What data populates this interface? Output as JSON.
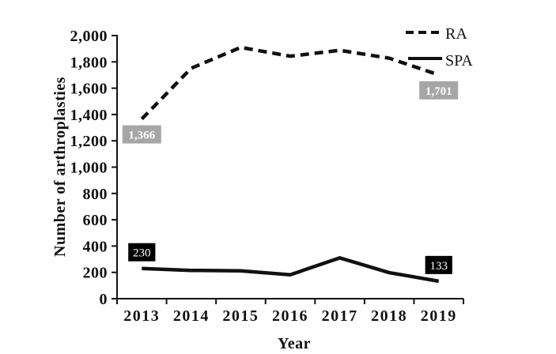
{
  "chart_data": {
    "type": "line",
    "title": "",
    "xlabel": "Year",
    "ylabel": "Number of arthroplasties",
    "categories": [
      "2013",
      "2014",
      "2015",
      "2016",
      "2017",
      "2018",
      "2019"
    ],
    "series": [
      {
        "name": "RA",
        "line_style": "dashed",
        "values": [
          1366,
          1752,
          1910,
          1843,
          1888,
          1828,
          1701
        ]
      },
      {
        "name": "SPA",
        "line_style": "solid",
        "values": [
          230,
          215,
          212,
          182,
          310,
          198,
          133
        ]
      }
    ],
    "ylim": [
      0,
      2000
    ],
    "ytick_step": 200,
    "ytick_labels": [
      "0",
      "200",
      "400",
      "600",
      "800",
      "1,000",
      "1,200",
      "1,400",
      "1,600",
      "1,800",
      "2,000"
    ],
    "grid": "off",
    "legend": {
      "position": "top-right",
      "items": [
        {
          "label": "RA",
          "line_style": "dashed"
        },
        {
          "label": "SPA",
          "line_style": "solid"
        }
      ]
    },
    "annotations": [
      {
        "series_index": 0,
        "index": 0,
        "text": "1,366",
        "bg": "#a6a6a6",
        "color": "#ffffff",
        "position": "below"
      },
      {
        "series_index": 0,
        "index": 6,
        "text": "1,701",
        "bg": "#a6a6a6",
        "color": "#ffffff",
        "position": "below"
      },
      {
        "series_index": 1,
        "index": 0,
        "text": "230",
        "bg": "#000000",
        "color": "#ffffff",
        "position": "above"
      },
      {
        "series_index": 1,
        "index": 6,
        "text": "133",
        "bg": "#000000",
        "color": "#ffffff",
        "position": "above"
      }
    ],
    "colors": {
      "line": "#111111",
      "label_gray_bg": "#a6a6a6",
      "label_black_bg": "#000000",
      "label_text": "#ffffff"
    }
  }
}
